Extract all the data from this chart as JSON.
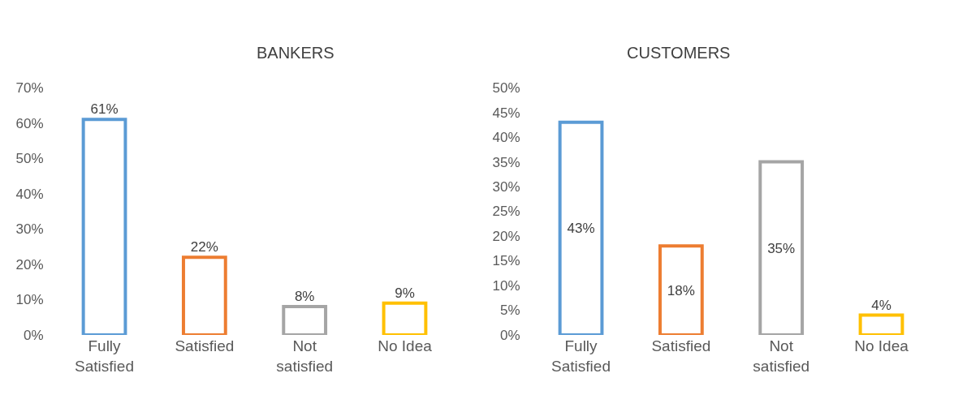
{
  "chart_data": [
    {
      "type": "bar",
      "title": "BANKERS",
      "categories": [
        "Fully Satisfied",
        "Satisfied",
        "Not satisfied",
        "No Idea"
      ],
      "values": [
        61,
        22,
        8,
        9
      ],
      "value_labels": [
        "61%",
        "22%",
        "8%",
        "9%"
      ],
      "colors": [
        "#5b9bd5",
        "#ed7d31",
        "#a5a5a5",
        "#ffc000"
      ],
      "ylim": [
        0,
        70
      ],
      "yticks": [
        {
          "value": 0,
          "label": "0%"
        },
        {
          "value": 10,
          "label": "10%"
        },
        {
          "value": 20,
          "label": "20%"
        },
        {
          "value": 30,
          "label": "30%"
        },
        {
          "value": 40,
          "label": "40%"
        },
        {
          "value": 50,
          "label": "50%"
        },
        {
          "value": 60,
          "label": "60%"
        },
        {
          "value": 70,
          "label": "70%"
        }
      ]
    },
    {
      "type": "bar",
      "title": "CUSTOMERS",
      "categories": [
        "Fully Satisfied",
        "Satisfied",
        "Not satisfied",
        "No Idea"
      ],
      "values": [
        43,
        18,
        35,
        4
      ],
      "value_labels": [
        "43%",
        "18%",
        "35%",
        "4%"
      ],
      "colors": [
        "#5b9bd5",
        "#ed7d31",
        "#a5a5a5",
        "#ffc000"
      ],
      "ylim": [
        0,
        50
      ],
      "yticks": [
        {
          "value": 0,
          "label": "0%"
        },
        {
          "value": 5,
          "label": "5%"
        },
        {
          "value": 10,
          "label": "10%"
        },
        {
          "value": 15,
          "label": "15%"
        },
        {
          "value": 20,
          "label": "20%"
        },
        {
          "value": 25,
          "label": "25%"
        },
        {
          "value": 30,
          "label": "30%"
        },
        {
          "value": 35,
          "label": "35%"
        },
        {
          "value": 40,
          "label": "40%"
        },
        {
          "value": 45,
          "label": "45%"
        },
        {
          "value": 50,
          "label": "50%"
        }
      ]
    }
  ]
}
